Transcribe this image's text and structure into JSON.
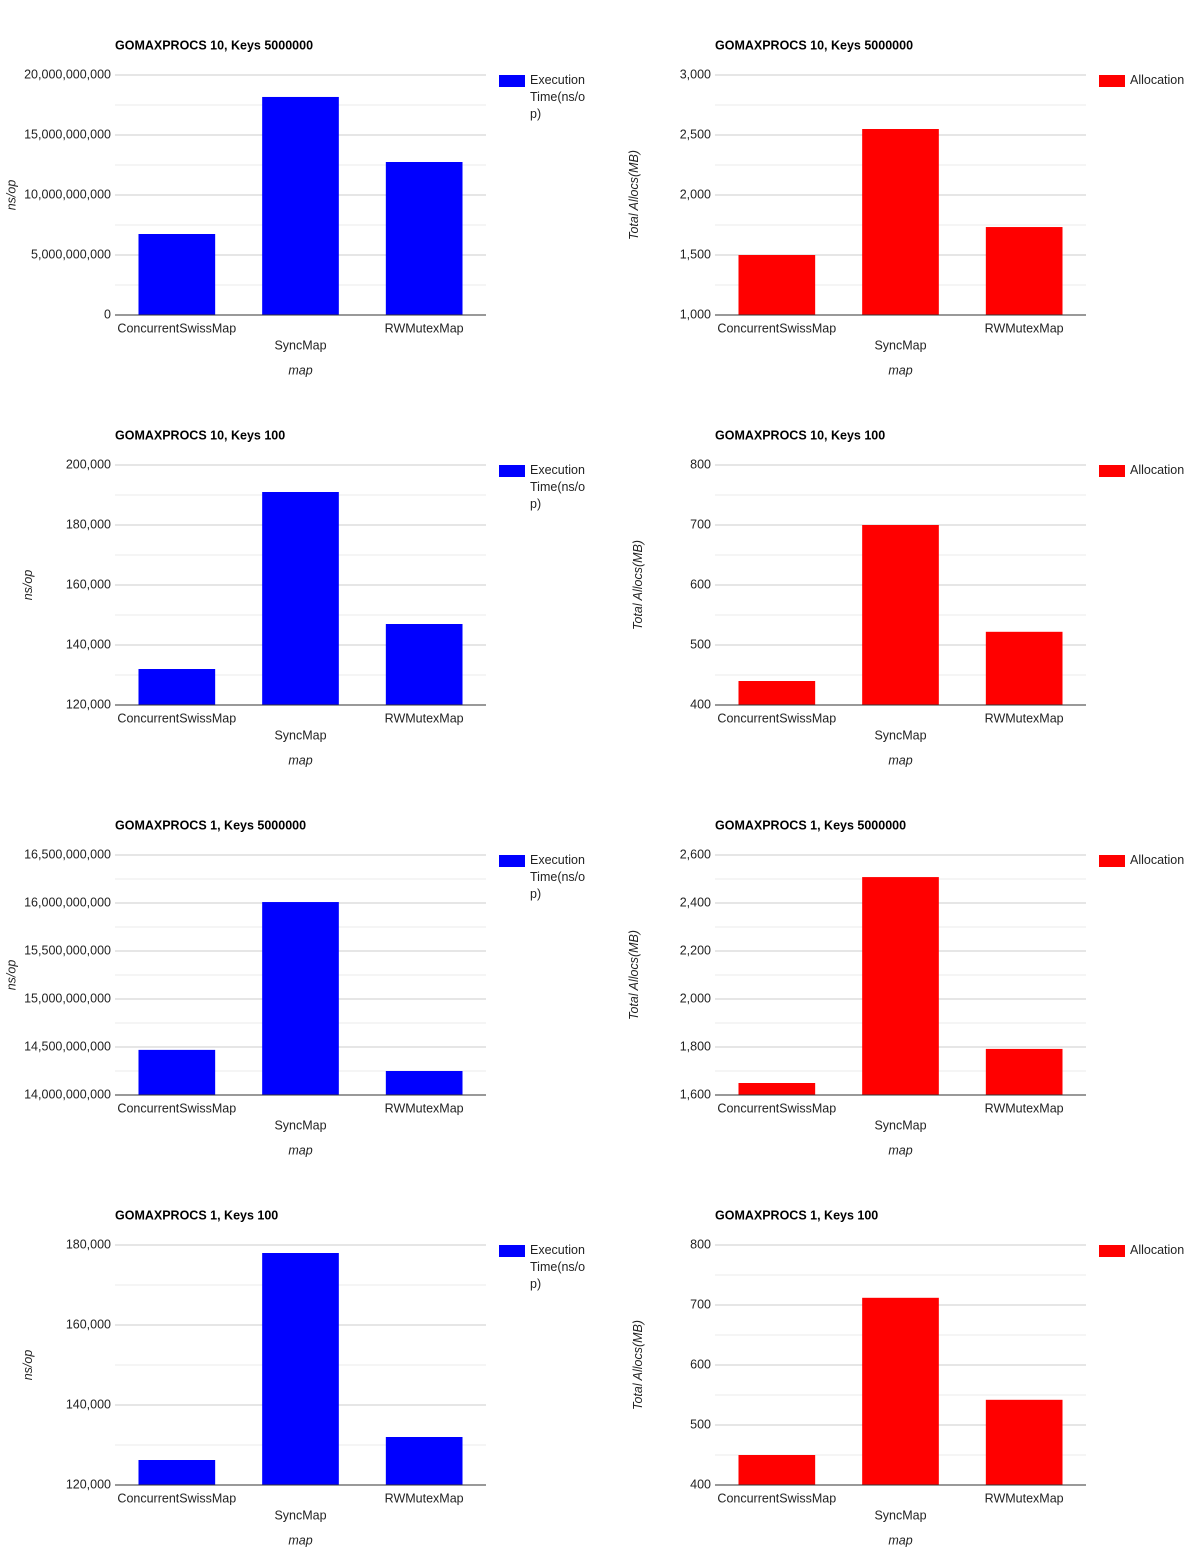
{
  "chart_data": [
    {
      "type": "bar",
      "title": "GOMAXPROCS 10, Keys 5000000",
      "x_label": "map",
      "y_label": "ns/op",
      "categories": [
        "ConcurrentSwissMap",
        "SyncMap",
        "RWMutexMap"
      ],
      "series": [
        {
          "name": "Execution Time(ns/op)",
          "color": "#0000ff",
          "values": [
            6750000000,
            18170000000,
            12750000000
          ]
        }
      ],
      "ylim": [
        0,
        20000000000
      ],
      "yticks": [
        0,
        {
          "value": 5000000000,
          "label": "5,000,000,000"
        },
        {
          "value": 10000000000,
          "label": "10,000,000,000"
        },
        {
          "value": 15000000000,
          "label": "15,000,000,000"
        },
        {
          "value": 20000000000,
          "label": "20,000,000,000"
        }
      ],
      "grid": true,
      "minor_grid": true,
      "legend": "right"
    },
    {
      "type": "bar",
      "title": "GOMAXPROCS 10, Keys 5000000",
      "x_label": "map",
      "y_label": "Total Allocs(MB)",
      "categories": [
        "ConcurrentSwissMap",
        "SyncMap",
        "RWMutexMap"
      ],
      "series": [
        {
          "name": "Allocation",
          "color": "#ff0000",
          "values": [
            1500,
            2550,
            1733
          ]
        }
      ],
      "ylim": [
        1000,
        3000
      ],
      "yticks": [
        {
          "value": 1000,
          "label": "1,000"
        },
        {
          "value": 1500,
          "label": "1,500"
        },
        {
          "value": 2000,
          "label": "2,000"
        },
        {
          "value": 2500,
          "label": "2,500"
        },
        {
          "value": 3000,
          "label": "3,000"
        }
      ],
      "grid": true,
      "minor_grid": true,
      "legend": "right"
    },
    {
      "type": "bar",
      "title": "GOMAXPROCS 10, Keys 100",
      "x_label": "map",
      "y_label": "ns/op",
      "categories": [
        "ConcurrentSwissMap",
        "SyncMap",
        "RWMutexMap"
      ],
      "series": [
        {
          "name": "Execution Time(ns/op)",
          "color": "#0000ff",
          "values": [
            132000,
            191000,
            147000
          ]
        }
      ],
      "ylim": [
        120000,
        200000
      ],
      "yticks": [
        {
          "value": 120000,
          "label": "120,000"
        },
        {
          "value": 140000,
          "label": "140,000"
        },
        {
          "value": 160000,
          "label": "160,000"
        },
        {
          "value": 180000,
          "label": "180,000"
        },
        {
          "value": 200000,
          "label": "200,000"
        }
      ],
      "grid": true,
      "minor_grid": true,
      "legend": "right"
    },
    {
      "type": "bar",
      "title": "GOMAXPROCS 10, Keys 100",
      "x_label": "map",
      "y_label": "Total Allocs(MB)",
      "categories": [
        "ConcurrentSwissMap",
        "SyncMap",
        "RWMutexMap"
      ],
      "series": [
        {
          "name": "Allocation",
          "color": "#ff0000",
          "values": [
            440,
            700,
            522
          ]
        }
      ],
      "ylim": [
        400,
        800
      ],
      "yticks": [
        400,
        500,
        600,
        700,
        800
      ],
      "grid": true,
      "minor_grid": true,
      "legend": "right"
    },
    {
      "type": "bar",
      "title": "GOMAXPROCS 1, Keys 5000000",
      "x_label": "map",
      "y_label": "ns/op",
      "categories": [
        "ConcurrentSwissMap",
        "SyncMap",
        "RWMutexMap"
      ],
      "series": [
        {
          "name": "Execution Time(ns/op)",
          "color": "#0000ff",
          "values": [
            14470000000,
            16010000000,
            14250000000
          ]
        }
      ],
      "ylim": [
        14000000000,
        16500000000
      ],
      "yticks": [
        {
          "value": 14000000000,
          "label": "14,000,000,000"
        },
        {
          "value": 14500000000,
          "label": "14,500,000,000"
        },
        {
          "value": 15000000000,
          "label": "15,000,000,000"
        },
        {
          "value": 15500000000,
          "label": "15,500,000,000"
        },
        {
          "value": 16000000000,
          "label": "16,000,000,000"
        },
        {
          "value": 16500000000,
          "label": "16,500,000,000"
        }
      ],
      "grid": true,
      "minor_grid": true,
      "legend": "right"
    },
    {
      "type": "bar",
      "title": "GOMAXPROCS 1, Keys 5000000",
      "x_label": "map",
      "y_label": "Total Allocs(MB)",
      "categories": [
        "ConcurrentSwissMap",
        "SyncMap",
        "RWMutexMap"
      ],
      "series": [
        {
          "name": "Allocation",
          "color": "#ff0000",
          "values": [
            1650,
            2508,
            1792
          ]
        }
      ],
      "ylim": [
        1600,
        2600
      ],
      "yticks": [
        {
          "value": 1600,
          "label": "1,600"
        },
        {
          "value": 1800,
          "label": "1,800"
        },
        {
          "value": 2000,
          "label": "2,000"
        },
        {
          "value": 2200,
          "label": "2,200"
        },
        {
          "value": 2400,
          "label": "2,400"
        },
        {
          "value": 2600,
          "label": "2,600"
        }
      ],
      "grid": true,
      "minor_grid": true,
      "legend": "right"
    },
    {
      "type": "bar",
      "title": "GOMAXPROCS 1, Keys 100",
      "x_label": "map",
      "y_label": "ns/op",
      "categories": [
        "ConcurrentSwissMap",
        "SyncMap",
        "RWMutexMap"
      ],
      "series": [
        {
          "name": "Execution Time(ns/op)",
          "color": "#0000ff",
          "values": [
            126250,
            178000,
            132000
          ]
        }
      ],
      "ylim": [
        120000,
        180000
      ],
      "yticks": [
        {
          "value": 120000,
          "label": "120,000"
        },
        {
          "value": 140000,
          "label": "140,000"
        },
        {
          "value": 160000,
          "label": "160,000"
        },
        {
          "value": 180000,
          "label": "180,000"
        }
      ],
      "grid": true,
      "minor_grid": true,
      "legend": "right"
    },
    {
      "type": "bar",
      "title": "GOMAXPROCS 1, Keys 100",
      "x_label": "map",
      "y_label": "Total Allocs(MB)",
      "categories": [
        "ConcurrentSwissMap",
        "SyncMap",
        "RWMutexMap"
      ],
      "series": [
        {
          "name": "Allocation",
          "color": "#ff0000",
          "values": [
            450,
            712,
            542
          ]
        }
      ],
      "ylim": [
        400,
        800
      ],
      "yticks": [
        400,
        500,
        600,
        700,
        800
      ],
      "grid": true,
      "minor_grid": true,
      "legend": "right"
    }
  ]
}
